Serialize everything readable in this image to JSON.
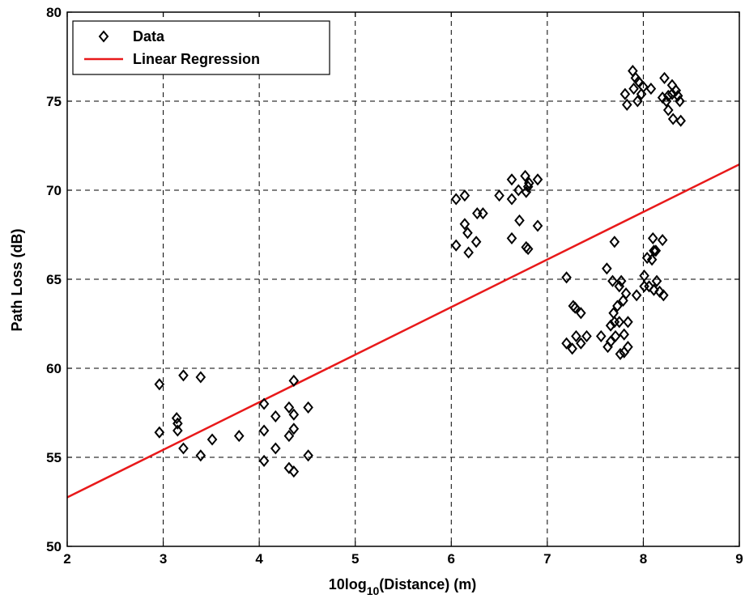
{
  "chart_data": {
    "type": "scatter",
    "xlabel": {
      "base": "10log",
      "sub": "10",
      "rest": "(Distance) (m)"
    },
    "ylabel": "Path Loss (dB)",
    "xlim": [
      2,
      9
    ],
    "ylim": [
      50,
      80
    ],
    "xticks": [
      "2",
      "3",
      "4",
      "5",
      "6",
      "7",
      "8",
      "9"
    ],
    "yticks": [
      "50",
      "55",
      "60",
      "65",
      "70",
      "75",
      "80"
    ],
    "grid": true,
    "legend_position": "top-left",
    "series": [
      {
        "name": "Data",
        "marker": "diamond",
        "color": "#000000",
        "points": [
          [
            2.96,
            59.1
          ],
          [
            2.96,
            56.4
          ],
          [
            3.14,
            57.2
          ],
          [
            3.15,
            56.9
          ],
          [
            3.15,
            56.5
          ],
          [
            3.21,
            59.6
          ],
          [
            3.21,
            55.5
          ],
          [
            3.39,
            55.1
          ],
          [
            3.39,
            59.5
          ],
          [
            3.51,
            56.0
          ],
          [
            3.79,
            56.2
          ],
          [
            4.05,
            58.0
          ],
          [
            4.05,
            56.5
          ],
          [
            4.05,
            54.8
          ],
          [
            4.17,
            57.3
          ],
          [
            4.17,
            55.5
          ],
          [
            4.31,
            57.8
          ],
          [
            4.31,
            56.2
          ],
          [
            4.31,
            54.4
          ],
          [
            4.36,
            59.3
          ],
          [
            4.36,
            57.4
          ],
          [
            4.36,
            56.6
          ],
          [
            4.36,
            54.2
          ],
          [
            4.51,
            57.8
          ],
          [
            4.51,
            55.1
          ],
          [
            6.05,
            69.5
          ],
          [
            6.05,
            66.9
          ],
          [
            6.14,
            69.7
          ],
          [
            6.14,
            68.1
          ],
          [
            6.17,
            67.6
          ],
          [
            6.18,
            66.5
          ],
          [
            6.26,
            67.1
          ],
          [
            6.27,
            68.7
          ],
          [
            6.33,
            68.7
          ],
          [
            6.5,
            69.7
          ],
          [
            6.63,
            70.6
          ],
          [
            6.63,
            69.5
          ],
          [
            6.63,
            67.3
          ],
          [
            6.7,
            70.0
          ],
          [
            6.71,
            68.3
          ],
          [
            6.77,
            70.8
          ],
          [
            6.78,
            69.9
          ],
          [
            6.78,
            66.8
          ],
          [
            6.8,
            70.2
          ],
          [
            6.8,
            66.7
          ],
          [
            6.81,
            70.4
          ],
          [
            6.9,
            70.6
          ],
          [
            6.9,
            68.0
          ],
          [
            7.2,
            65.1
          ],
          [
            7.2,
            61.4
          ],
          [
            7.26,
            61.1
          ],
          [
            7.27,
            63.5
          ],
          [
            7.29,
            63.4
          ],
          [
            7.3,
            61.8
          ],
          [
            7.35,
            63.1
          ],
          [
            7.35,
            61.4
          ],
          [
            7.41,
            61.8
          ],
          [
            7.56,
            61.8
          ],
          [
            7.62,
            65.6
          ],
          [
            7.63,
            61.2
          ],
          [
            7.66,
            62.4
          ],
          [
            7.66,
            61.5
          ],
          [
            7.68,
            64.9
          ],
          [
            7.69,
            63.1
          ],
          [
            7.7,
            67.1
          ],
          [
            7.7,
            62.6
          ],
          [
            7.71,
            61.8
          ],
          [
            7.73,
            63.5
          ],
          [
            7.75,
            64.6
          ],
          [
            7.75,
            62.6
          ],
          [
            7.76,
            60.8
          ],
          [
            7.77,
            64.9
          ],
          [
            7.79,
            63.8
          ],
          [
            7.8,
            61.9
          ],
          [
            7.8,
            60.9
          ],
          [
            7.82,
            64.2
          ],
          [
            7.84,
            62.6
          ],
          [
            7.84,
            61.2
          ],
          [
            7.93,
            64.1
          ],
          [
            8.01,
            65.2
          ],
          [
            8.01,
            64.6
          ],
          [
            8.04,
            66.2
          ],
          [
            8.06,
            64.6
          ],
          [
            8.09,
            66.1
          ],
          [
            8.1,
            67.3
          ],
          [
            8.11,
            66.6
          ],
          [
            8.11,
            64.4
          ],
          [
            8.13,
            66.6
          ],
          [
            8.14,
            64.9
          ],
          [
            8.17,
            64.3
          ],
          [
            8.2,
            67.2
          ],
          [
            8.21,
            64.1
          ],
          [
            7.81,
            75.4
          ],
          [
            7.83,
            74.8
          ],
          [
            7.89,
            76.7
          ],
          [
            7.9,
            75.7
          ],
          [
            7.92,
            76.3
          ],
          [
            7.94,
            75.0
          ],
          [
            7.95,
            76.1
          ],
          [
            7.98,
            75.4
          ],
          [
            8.0,
            75.8
          ],
          [
            8.08,
            75.7
          ],
          [
            8.2,
            75.2
          ],
          [
            8.22,
            76.3
          ],
          [
            8.24,
            75.0
          ],
          [
            8.26,
            75.3
          ],
          [
            8.26,
            74.5
          ],
          [
            8.3,
            75.9
          ],
          [
            8.3,
            75.4
          ],
          [
            8.31,
            74.0
          ],
          [
            8.34,
            75.6
          ],
          [
            8.36,
            75.3
          ],
          [
            8.38,
            75.0
          ],
          [
            8.39,
            73.9
          ]
        ]
      },
      {
        "name": "Linear Regression",
        "marker": "line",
        "color": "#e8191a",
        "points": [
          [
            2,
            52.75
          ],
          [
            9,
            71.45
          ]
        ]
      }
    ]
  }
}
